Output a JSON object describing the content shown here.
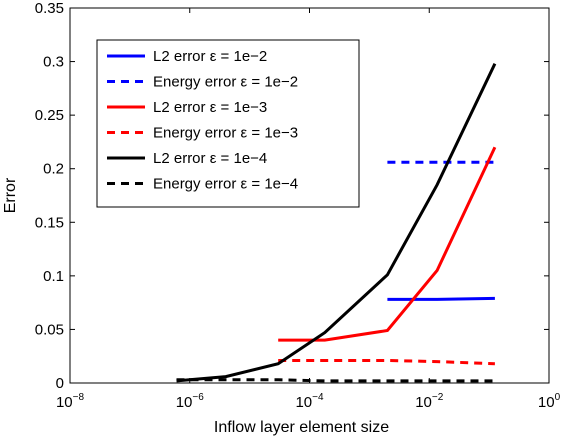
{
  "chart_data": {
    "type": "line",
    "xlabel": "Inflow layer element size",
    "ylabel": "Error",
    "x_scale": "log",
    "xlim": [
      1e-08,
      1
    ],
    "ylim": [
      0,
      0.35
    ],
    "grid": false,
    "legend_position": "top-left",
    "x_ticks": [
      {
        "base": "10",
        "exp": "−8",
        "value": 1e-08
      },
      {
        "base": "10",
        "exp": "−6",
        "value": 1e-06
      },
      {
        "base": "10",
        "exp": "−4",
        "value": 0.0001
      },
      {
        "base": "10",
        "exp": "−2",
        "value": 0.01
      },
      {
        "base": "10",
        "exp": "0",
        "value": 1
      }
    ],
    "y_ticks": [
      {
        "label": "0",
        "value": 0
      },
      {
        "label": "0.05",
        "value": 0.05
      },
      {
        "label": "0.1",
        "value": 0.1
      },
      {
        "label": "0.15",
        "value": 0.15
      },
      {
        "label": "0.2",
        "value": 0.2
      },
      {
        "label": "0.25",
        "value": 0.25
      },
      {
        "label": "0.3",
        "value": 0.3
      },
      {
        "label": "0.35",
        "value": 0.35
      }
    ],
    "series": [
      {
        "name": "L2 error ε = 1e−2",
        "color": "#0000ff",
        "dash": "solid",
        "x": [
          0.002,
          0.0135,
          0.125
        ],
        "y": [
          0.078,
          0.078,
          0.079
        ]
      },
      {
        "name": "Energy error ε = 1e−2",
        "color": "#0000ff",
        "dash": "dashed",
        "x": [
          0.002,
          0.0135,
          0.125
        ],
        "y": [
          0.206,
          0.206,
          0.206
        ]
      },
      {
        "name": "L2 error ε = 1e−3",
        "color": "#ff0000",
        "dash": "solid",
        "x": [
          3e-05,
          0.00018,
          0.002,
          0.0135,
          0.125
        ],
        "y": [
          0.04,
          0.04,
          0.049,
          0.105,
          0.22
        ]
      },
      {
        "name": "Energy error ε = 1e−3",
        "color": "#ff0000",
        "dash": "dashed",
        "x": [
          3e-05,
          0.00018,
          0.002,
          0.0135,
          0.125
        ],
        "y": [
          0.021,
          0.021,
          0.021,
          0.02,
          0.018
        ]
      },
      {
        "name": "L2 error ε = 1e−4",
        "color": "#000000",
        "dash": "solid",
        "x": [
          6e-07,
          4e-06,
          3e-05,
          0.00018,
          0.002,
          0.0135,
          0.125
        ],
        "y": [
          0.002,
          0.006,
          0.018,
          0.047,
          0.101,
          0.185,
          0.298
        ]
      },
      {
        "name": "Energy error ε = 1e−4",
        "color": "#000000",
        "dash": "dashed",
        "x": [
          6e-07,
          4e-06,
          3e-05,
          0.00018,
          0.002,
          0.0135,
          0.125
        ],
        "y": [
          0.003,
          0.003,
          0.003,
          0.002,
          0.002,
          0.002,
          0.002
        ]
      }
    ]
  }
}
